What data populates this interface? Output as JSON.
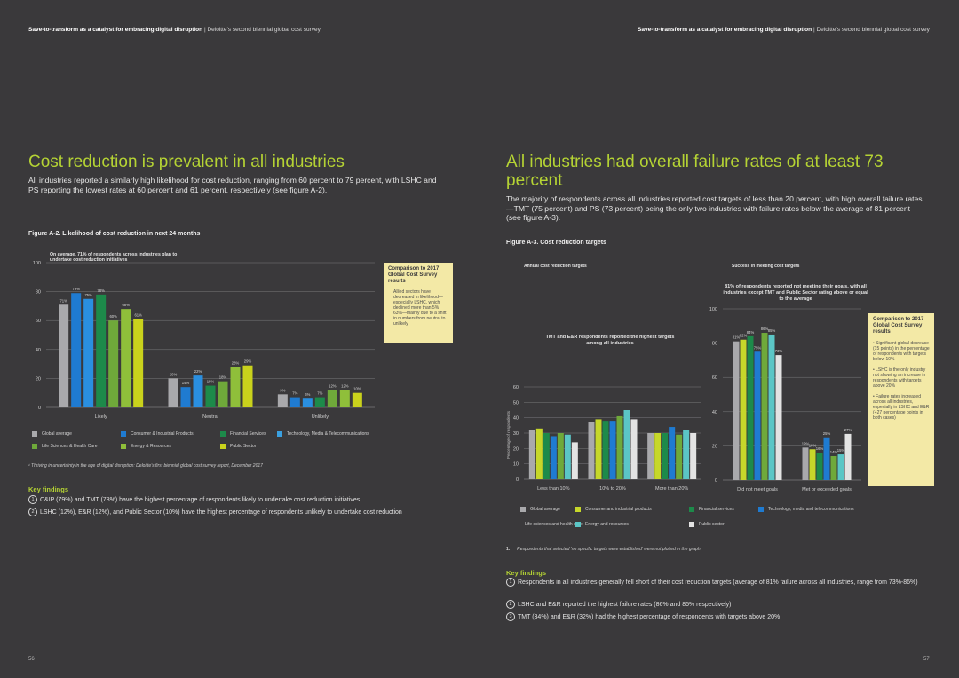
{
  "colors": {
    "global": "#a9a9ac",
    "consumer": "#c6d72a",
    "financial": "#1d8a4a",
    "tmt": "#1f7bd1",
    "lshc": "#6fa93a",
    "energy": "#c9d21c",
    "public": "#e3e3e3",
    "bg": "#3a393b",
    "accent": "#b5d334",
    "box": "#f3e9a6"
  },
  "header": {
    "left_bold": "Save-to-transform as a catalyst for embracing digital disruption",
    "left_rest": " | Deloitte’s second biennial global cost survey",
    "right_bold": "Save-to-transform as a catalyst for embracing digital disruption",
    "right_rest": " | Deloitte’s second biennial global cost survey"
  },
  "left": {
    "title": "Cost reduction is prevalent in all industries",
    "lead": "All industries reported a similarly high likelihood for cost reduction, ranging from 60 percent to 79 percent, with LSHC and PS reporting the lowest rates at 60 percent and 61 percent, respectively (see figure A-2).",
    "figure_title": "Figure A-2. Likelihood of cost reduction in next 24 months",
    "chart_note": "On average, 71% of respondents across industries plan to undertake cost reduction initiatives",
    "box_title": "Comparison to 2017 Global Cost Survey results",
    "box_body": "Allied sectors have decreased in likelihood—especially LSHC, which declined more than 5% 63%—mainly due to a shift in numbers from neutral to unlikely",
    "legend": [
      "Global average",
      "Consumer & Industrial Products",
      "Financial Services",
      "Technology, Media & Telecommunications",
      "Life Sciences & Health Care",
      "Energy & Resources",
      "Public Sector"
    ],
    "footnote": "¹ Thriving in uncertainty in the age of digital disruption: Deloitte’s first biennial global cost survey report, December 2017",
    "key_findings_title": "Key findings",
    "key_findings": [
      "C&IP (79%) and TMT (78%) have the highest percentage of respondents likely to undertake cost reduction initiatives",
      "LSHC (12%), E&R (12%), and Public Sector (10%) have the highest percentage of respondents unlikely to undertake cost reduction"
    ],
    "page_number": "56"
  },
  "right": {
    "title": "All industries had overall failure rates of at least 73 percent",
    "lead": "The majority of respondents across all industries reported cost targets of less than 20 percent, with high overall failure rates—TMT (75 percent) and PS (73 percent) being the only two industries with failure rates below the average of 81 percent (see figure A-3).",
    "figure_title": "Figure A-3. Cost reduction targets",
    "sub1": "Annual cost reduction targets",
    "sub2": "Success in meeting cost targets",
    "note1": "TMT and E&R respondents reported the highest targets among all industries",
    "note2": "81% of respondents reported not meeting their goals, with all industries except TMT and Public Sector rating above or equal to the average",
    "ylabel": "Percentage of respondents",
    "box_title": "Comparison to 2017 Global Cost Survey results",
    "box_items": [
      "Significant global decrease (15 points) in the percentage of respondents with targets below 10%",
      "LSHC is the only industry not showing an increase in respondents with targets above 20%",
      "Failure rates increased across all industries, especially in LSHC and E&R (+27 percentage points in both cases)"
    ],
    "legend": [
      "Global average",
      "Consumer and industrial products",
      "Financial services",
      "Technology, media and telecommunications",
      "Life sciences and health care",
      "Energy and resources",
      "Public sector"
    ],
    "footnote_num": "1.",
    "footnote": "Respondents that selected 'no specific targets were established' were not plotted in the graph",
    "key_findings_title": "Key findings",
    "key_findings": [
      "Respondents in all industries generally fell short of their cost reduction targets (average of 81% failure across all industries, range from 73%-86%)",
      "LSHC and E&R reported the highest failure rates (86% and 85% respectively)",
      "TMT (34%) and E&R (32%) had the highest percentage of respondents with targets above 20%"
    ],
    "page_number": "57"
  },
  "chart_data": [
    {
      "type": "bar",
      "title": "Figure A-2. Likelihood of cost reduction in next 24 months",
      "categories": [
        "Likely",
        "Neutral",
        "Unlikely"
      ],
      "ylim": [
        0,
        100
      ],
      "yticks": [
        0,
        20,
        40,
        60,
        80,
        100
      ],
      "series": [
        {
          "name": "Global average",
          "values": [
            71,
            20,
            9
          ]
        },
        {
          "name": "Consumer & Industrial Products",
          "values": [
            79,
            14,
            7
          ]
        },
        {
          "name": "Financial Services",
          "values": [
            75,
            22,
            6
          ]
        },
        {
          "name": "Technology, Media & Telecommunications",
          "values": [
            78,
            15,
            7
          ]
        },
        {
          "name": "Life Sciences & Health Care",
          "values": [
            60,
            18,
            12
          ]
        },
        {
          "name": "Energy & Resources",
          "values": [
            68,
            28,
            12
          ]
        },
        {
          "name": "Public Sector",
          "values": [
            61,
            29,
            10
          ]
        }
      ],
      "value_labels": [
        [
          "71%",
          "20%",
          "9%"
        ],
        [
          "79%",
          "14%",
          "7%"
        ],
        [
          "75%",
          "22%",
          "6%"
        ],
        [
          "78%",
          "15%",
          "7%"
        ],
        [
          "60%",
          "18%",
          "12%"
        ],
        [
          "68%",
          "28%",
          "12%"
        ],
        [
          "61%",
          "29%",
          "10%"
        ]
      ],
      "annotations": [
        "1",
        "1",
        "2",
        "2",
        "2"
      ]
    },
    {
      "type": "bar",
      "title": "Annual cost reduction targets",
      "categories": [
        "Less than 10%",
        "10% to 20%",
        "More than 20%"
      ],
      "ylim": [
        0,
        60
      ],
      "yticks": [
        0,
        10,
        20,
        30,
        40,
        50,
        60
      ],
      "series": [
        {
          "name": "Global average",
          "values": [
            32,
            37,
            30
          ]
        },
        {
          "name": "Consumer and industrial products",
          "values": [
            33,
            39,
            30
          ]
        },
        {
          "name": "Financial services",
          "values": [
            30,
            38,
            30
          ]
        },
        {
          "name": "Technology, media and telecommunications",
          "values": [
            28,
            38,
            34
          ]
        },
        {
          "name": "Life sciences and health care",
          "values": [
            30,
            41,
            29
          ]
        },
        {
          "name": "Energy and resources",
          "values": [
            29,
            45,
            32
          ]
        },
        {
          "name": "Public sector",
          "values": [
            24,
            39,
            30
          ]
        }
      ],
      "annotations": [
        "3"
      ]
    },
    {
      "type": "bar",
      "title": "Success in meeting cost targets",
      "categories": [
        "Did not meet goals",
        "Met or exceeded goals"
      ],
      "ylim": [
        0,
        100
      ],
      "yticks": [
        0,
        20,
        40,
        60,
        80,
        100
      ],
      "series": [
        {
          "name": "Global average",
          "values": [
            81,
            19
          ]
        },
        {
          "name": "Consumer and industrial products",
          "values": [
            82,
            18
          ]
        },
        {
          "name": "Financial services",
          "values": [
            84,
            16
          ]
        },
        {
          "name": "Technology, media and telecommunications",
          "values": [
            75,
            25
          ]
        },
        {
          "name": "Life sciences and health care",
          "values": [
            86,
            14
          ]
        },
        {
          "name": "Energy and resources",
          "values": [
            85,
            15
          ]
        },
        {
          "name": "Public sector",
          "values": [
            73,
            27
          ]
        }
      ],
      "value_labels": [
        [
          "81%",
          "19%"
        ],
        [
          "82%",
          "18%"
        ],
        [
          "84%",
          "16%"
        ],
        [
          "75%",
          "25%"
        ],
        [
          "86%",
          "14%"
        ],
        [
          "85%",
          "15%"
        ],
        [
          "73%",
          "27%"
        ]
      ],
      "annotations": [
        "1",
        "2"
      ]
    }
  ]
}
